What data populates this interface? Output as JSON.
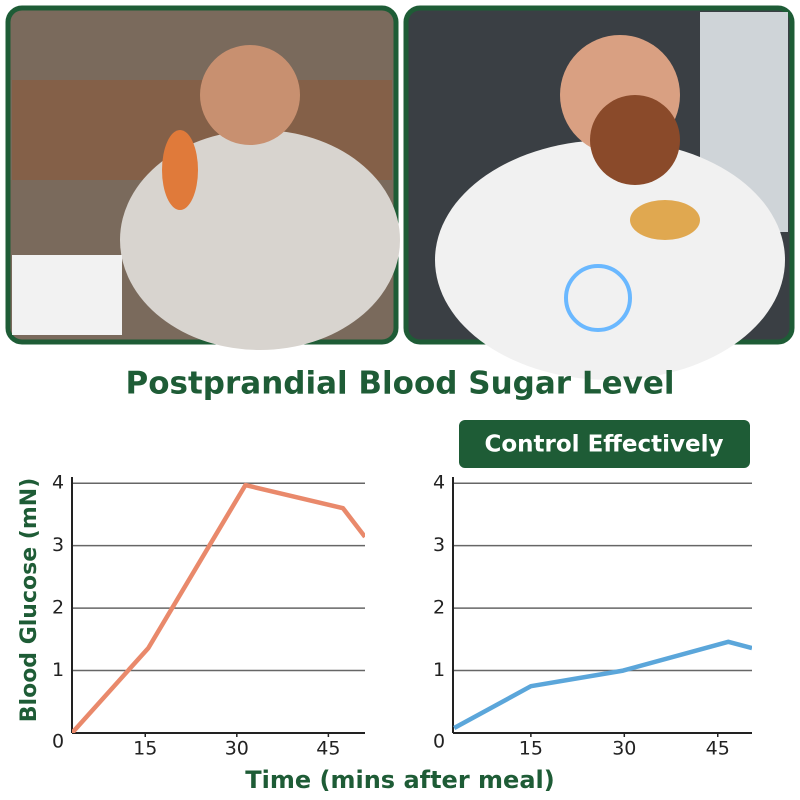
{
  "title": "Postprandial Blood Sugar Level",
  "badge": "Control Effectively",
  "y_label": "Blood Glucose (mN)",
  "x_label": "Time (mins after meal)",
  "chart_data": [
    {
      "type": "line",
      "x": [
        3,
        15.5,
        31.4,
        47.4,
        51
      ],
      "values": [
        0,
        1.36,
        3.97,
        3.6,
        3.14
      ],
      "color": "#e9896b",
      "xlim": [
        3,
        51
      ],
      "ylim": [
        0,
        4.1
      ],
      "xticks": [
        15,
        30,
        45
      ],
      "yticks": [
        0,
        1,
        2,
        3,
        4
      ],
      "grid": true
    },
    {
      "type": "line",
      "x": [
        2.7,
        15,
        29.8,
        46.7,
        50.5
      ],
      "values": [
        0.08,
        0.75,
        1.0,
        1.46,
        1.36
      ],
      "color": "#5ba6da",
      "xlim": [
        2.5,
        50.5
      ],
      "ylim": [
        0,
        4.1
      ],
      "xticks": [
        15,
        30,
        45
      ],
      "yticks": [
        0,
        1,
        2,
        3,
        4
      ],
      "grid": true
    }
  ]
}
